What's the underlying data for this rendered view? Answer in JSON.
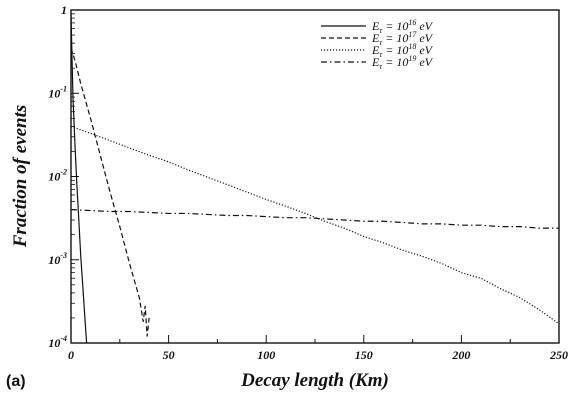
{
  "panel_label": "(a)",
  "chart_data": {
    "type": "line",
    "title": "",
    "xlabel": "Decay length (Km)",
    "ylabel": "Fraction of events",
    "xlim": [
      0,
      250
    ],
    "ylim": [
      0.0001,
      1
    ],
    "yscale": "log",
    "grid": false,
    "legend_position": "top-right",
    "x_ticks": [
      0,
      50,
      100,
      150,
      200,
      250
    ],
    "y_ticks": [
      {
        "value": 1,
        "base": "1",
        "exp": ""
      },
      {
        "value": 0.1,
        "base": "10",
        "exp": "-1"
      },
      {
        "value": 0.01,
        "base": "10",
        "exp": "-2"
      },
      {
        "value": 0.001,
        "base": "10",
        "exp": "-3"
      },
      {
        "value": 0.0001,
        "base": "10",
        "exp": "-4"
      }
    ],
    "series": [
      {
        "name": "E_τ = 10^16 eV",
        "legend": {
          "prefix": "E",
          "sub": "τ",
          "mid": " = 10",
          "sup": "16",
          "suffix": " eV"
        },
        "style": "solid",
        "x": [
          0,
          1,
          2,
          3,
          4,
          5,
          6,
          7,
          8
        ],
        "y": [
          0.9,
          0.09,
          0.025,
          0.008,
          0.003,
          0.0011,
          0.0005,
          0.00022,
          0.0001
        ]
      },
      {
        "name": "E_τ = 10^17 eV",
        "legend": {
          "prefix": "E",
          "sub": "τ",
          "mid": " = 10",
          "sup": "17",
          "suffix": " eV"
        },
        "style": "dashed",
        "x": [
          0,
          2,
          5,
          10,
          15,
          20,
          25,
          30,
          35,
          37,
          38,
          39,
          40
        ],
        "y": [
          0.35,
          0.25,
          0.13,
          0.05,
          0.018,
          0.0065,
          0.0025,
          0.0009,
          0.00035,
          0.00018,
          0.00028,
          0.00012,
          0.0002
        ]
      },
      {
        "name": "E_τ = 10^18 eV",
        "legend": {
          "prefix": "E",
          "sub": "τ",
          "mid": " = 10",
          "sup": "18",
          "suffix": " eV"
        },
        "style": "dotted",
        "x": [
          0,
          10,
          20,
          30,
          40,
          50,
          60,
          70,
          80,
          90,
          100,
          110,
          120,
          130,
          140,
          150,
          160,
          170,
          180,
          190,
          200,
          210,
          220,
          230,
          240,
          250
        ],
        "y": [
          0.04,
          0.033,
          0.027,
          0.022,
          0.018,
          0.015,
          0.012,
          0.0098,
          0.008,
          0.0065,
          0.0053,
          0.0044,
          0.0036,
          0.0029,
          0.0024,
          0.0019,
          0.0016,
          0.0013,
          0.0011,
          0.0009,
          0.0007,
          0.0006,
          0.00045,
          0.00035,
          0.00025,
          0.00017
        ]
      },
      {
        "name": "E_τ = 10^19 eV",
        "legend": {
          "prefix": "E",
          "sub": "τ",
          "mid": " = 10",
          "sup": "19",
          "suffix": " eV"
        },
        "style": "dashdot",
        "x": [
          0,
          10,
          20,
          30,
          40,
          50,
          60,
          70,
          80,
          90,
          100,
          110,
          120,
          130,
          140,
          150,
          160,
          170,
          180,
          190,
          200,
          210,
          220,
          230,
          240,
          250
        ],
        "y": [
          0.004,
          0.0039,
          0.0038,
          0.0038,
          0.0037,
          0.0036,
          0.0036,
          0.0035,
          0.0034,
          0.0034,
          0.0033,
          0.0032,
          0.0032,
          0.0031,
          0.003,
          0.0029,
          0.0029,
          0.0028,
          0.0027,
          0.0027,
          0.0026,
          0.0026,
          0.0025,
          0.0025,
          0.0024,
          0.0024
        ]
      }
    ]
  }
}
